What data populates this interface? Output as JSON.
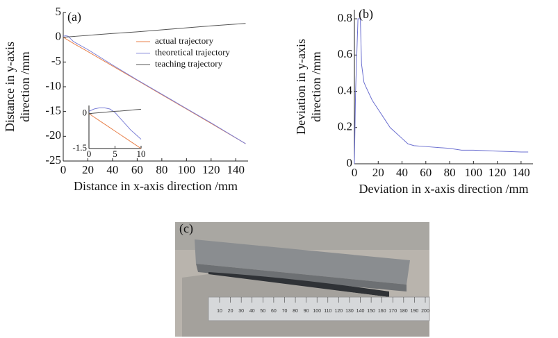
{
  "chart_data": [
    {
      "type": "line",
      "label": "(a)",
      "xlabel": "Distance in x-axis direction /mm",
      "ylabel_lines": [
        "Distance in y-axis",
        "direction /mm"
      ],
      "x": [
        0,
        2,
        4,
        6,
        8,
        10,
        20,
        40,
        60,
        80,
        100,
        120,
        148
      ],
      "series": [
        {
          "name": "actual trajectory",
          "color": "#e8804a",
          "values": [
            0,
            -0.3,
            -0.6,
            -0.9,
            -1.2,
            -1.5,
            -2.9,
            -5.8,
            -8.7,
            -11.6,
            -14.5,
            -17.4,
            -21.5
          ]
        },
        {
          "name": "theoretical trajectory",
          "color": "#7b7fd6",
          "values": [
            0.2,
            0.3,
            0.2,
            -0.3,
            -0.8,
            -1.1,
            -2.5,
            -5.6,
            -8.6,
            -11.5,
            -14.4,
            -17.3,
            -21.5
          ]
        },
        {
          "name": "teaching trajectory",
          "color": "#555555",
          "values": [
            0,
            0.04,
            0.08,
            0.11,
            0.15,
            0.19,
            0.38,
            0.76,
            1.1,
            1.5,
            1.9,
            2.3,
            2.8
          ]
        }
      ],
      "xlim": [
        0,
        150
      ],
      "ylim": [
        -25,
        5
      ],
      "xticks": [
        0,
        20,
        40,
        60,
        80,
        100,
        120,
        140
      ],
      "yticks": [
        5,
        0,
        -5,
        -10,
        -15,
        -20,
        -25
      ],
      "legend": "upper center",
      "inset": {
        "x": [
          0,
          1,
          2,
          3,
          4,
          5,
          6,
          7,
          8,
          9,
          10
        ],
        "xlim": [
          0,
          10
        ],
        "ylim": [
          -1.5,
          0.35
        ],
        "xticks": [
          0,
          5,
          10
        ],
        "yticks": [
          0,
          -1.5
        ],
        "series": [
          {
            "color": "#e8804a",
            "values": [
              0,
              -0.15,
              -0.3,
              -0.45,
              -0.6,
              -0.75,
              -0.9,
              -1.05,
              -1.2,
              -1.35,
              -1.5
            ]
          },
          {
            "color": "#7b7fd6",
            "values": [
              0.1,
              0.2,
              0.25,
              0.25,
              0.2,
              0.05,
              -0.2,
              -0.45,
              -0.7,
              -0.9,
              -1.1
            ]
          },
          {
            "color": "#555555",
            "values": [
              0,
              0.02,
              0.04,
              0.06,
              0.08,
              0.1,
              0.11,
              0.13,
              0.15,
              0.17,
              0.19
            ]
          }
        ]
      }
    },
    {
      "type": "line",
      "label": "(b)",
      "xlabel": "Deviation in x-axis direction /mm",
      "ylabel_lines": [
        "Deviation in y-axis",
        "direction /mm"
      ],
      "x": [
        0,
        1,
        2,
        3,
        5,
        6,
        8,
        10,
        15,
        20,
        25,
        30,
        35,
        40,
        45,
        50,
        60,
        80,
        90,
        100,
        120,
        140,
        146
      ],
      "series": [
        {
          "color": "#6b6fd0",
          "values": [
            0,
            0.4,
            0.6,
            0.8,
            0.8,
            0.55,
            0.45,
            0.42,
            0.35,
            0.3,
            0.25,
            0.2,
            0.17,
            0.14,
            0.11,
            0.1,
            0.095,
            0.085,
            0.075,
            0.075,
            0.07,
            0.065,
            0.065
          ]
        }
      ],
      "xlim": [
        0,
        150
      ],
      "ylim": [
        0,
        0.85
      ],
      "xticks": [
        0,
        20,
        40,
        60,
        80,
        100,
        120,
        140
      ],
      "yticks": [
        0,
        0.2,
        0.4,
        0.6,
        0.8
      ]
    }
  ],
  "photo": {
    "label": "(c)",
    "ruler_labels": [
      "10",
      "20",
      "30",
      "40",
      "50",
      "60",
      "70",
      "80",
      "90",
      "100",
      "110",
      "120",
      "130",
      "140",
      "150",
      "160",
      "170",
      "180",
      "190",
      "200"
    ]
  }
}
